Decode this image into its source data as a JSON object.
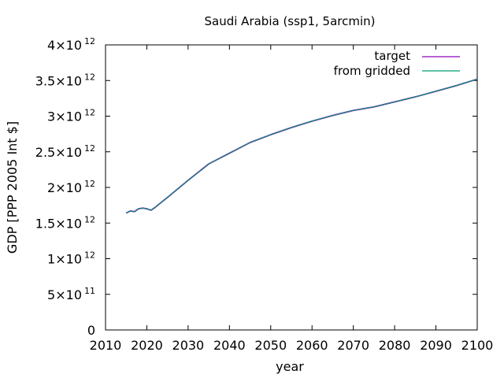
{
  "chart_data": {
    "type": "line",
    "title": "Saudi Arabia (ssp1, 5arcmin)",
    "xlabel": "year",
    "ylabel": "GDP [PPP 2005 Int $]",
    "xlim": [
      2010,
      2100
    ],
    "ylim": [
      0,
      4000000000000
    ],
    "grid": false,
    "legend_position": "top-right",
    "x_ticks": [
      "2010",
      "2020",
      "2030",
      "2040",
      "2050",
      "2060",
      "2070",
      "2080",
      "2090",
      "2100"
    ],
    "y_ticks": [
      {
        "value": 0,
        "mantissa": "0",
        "exponent": ""
      },
      {
        "value": 500000000000,
        "mantissa": "5×10",
        "exponent": "11"
      },
      {
        "value": 1000000000000,
        "mantissa": "1×10",
        "exponent": "12"
      },
      {
        "value": 1500000000000,
        "mantissa": "1.5×10",
        "exponent": "12"
      },
      {
        "value": 2000000000000,
        "mantissa": "2×10",
        "exponent": "12"
      },
      {
        "value": 2500000000000,
        "mantissa": "2.5×10",
        "exponent": "12"
      },
      {
        "value": 3000000000000,
        "mantissa": "3×10",
        "exponent": "12"
      },
      {
        "value": 3500000000000,
        "mantissa": "3.5×10",
        "exponent": "12"
      },
      {
        "value": 4000000000000,
        "mantissa": "4×10",
        "exponent": "12"
      }
    ],
    "x": [
      2015,
      2016,
      2017,
      2018,
      2019,
      2020,
      2021,
      2022,
      2025,
      2030,
      2035,
      2040,
      2045,
      2050,
      2055,
      2060,
      2065,
      2070,
      2075,
      2080,
      2085,
      2090,
      2095,
      2100
    ],
    "series": [
      {
        "name": "target",
        "color": "#8b00b4",
        "values": [
          1640000000000.0,
          1670000000000.0,
          1660000000000.0,
          1700000000000.0,
          1710000000000.0,
          1700000000000.0,
          1680000000000.0,
          1720000000000.0,
          1860000000000.0,
          2100000000000.0,
          2330000000000.0,
          2480000000000.0,
          2630000000000.0,
          2740000000000.0,
          2840000000000.0,
          2930000000000.0,
          3010000000000.0,
          3080000000000.0,
          3130000000000.0,
          3200000000000.0,
          3270000000000.0,
          3350000000000.0,
          3430000000000.0,
          3520000000000.0
        ]
      },
      {
        "name": "from gridded",
        "color": "#009e73",
        "values": [
          1640000000000.0,
          1670000000000.0,
          1660000000000.0,
          1700000000000.0,
          1710000000000.0,
          1700000000000.0,
          1680000000000.0,
          1720000000000.0,
          1860000000000.0,
          2100000000000.0,
          2330000000000.0,
          2480000000000.0,
          2630000000000.0,
          2740000000000.0,
          2840000000000.0,
          2930000000000.0,
          3010000000000.0,
          3080000000000.0,
          3130000000000.0,
          3200000000000.0,
          3270000000000.0,
          3350000000000.0,
          3430000000000.0,
          3520000000000.0
        ]
      }
    ]
  }
}
